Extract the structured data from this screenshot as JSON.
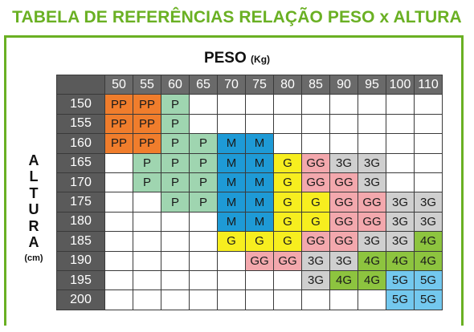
{
  "title": "TABELA DE REFERÊNCIAS RELAÇÃO PESO x ALTURA",
  "peso": {
    "label": "PESO",
    "unit": "(Kg)"
  },
  "altura": {
    "letters": [
      "A",
      "L",
      "T",
      "U",
      "R",
      "A"
    ],
    "unit": "(cm)"
  },
  "colors": {
    "PP": "#f07d2c",
    "P": "#9fd5b0",
    "M": "#1e9ad6",
    "G": "#f7ee1f",
    "GG": "#f3a8ad",
    "3G": "#cfcfcf",
    "4G": "#8dc43f",
    "5G": "#73c8ee",
    "frame": "#6ab023",
    "header": "#5a5a5a"
  },
  "table": {
    "weights": [
      "50",
      "55",
      "60",
      "65",
      "70",
      "75",
      "80",
      "85",
      "90",
      "95",
      "100",
      "110"
    ],
    "rows": [
      {
        "height": "150",
        "sizes": [
          "PP",
          "PP",
          "P",
          "",
          "",
          "",
          "",
          "",
          "",
          "",
          "",
          ""
        ]
      },
      {
        "height": "155",
        "sizes": [
          "PP",
          "PP",
          "P",
          "",
          "",
          "",
          "",
          "",
          "",
          "",
          "",
          ""
        ]
      },
      {
        "height": "160",
        "sizes": [
          "PP",
          "PP",
          "P",
          "P",
          "M",
          "M",
          "",
          "",
          "",
          "",
          "",
          ""
        ]
      },
      {
        "height": "165",
        "sizes": [
          "",
          "P",
          "P",
          "P",
          "M",
          "M",
          "G",
          "GG",
          "3G",
          "3G",
          "",
          ""
        ]
      },
      {
        "height": "170",
        "sizes": [
          "",
          "P",
          "P",
          "P",
          "M",
          "M",
          "G",
          "GG",
          "GG",
          "3G",
          "",
          ""
        ]
      },
      {
        "height": "175",
        "sizes": [
          "",
          "",
          "P",
          "P",
          "M",
          "M",
          "G",
          "G",
          "GG",
          "GG",
          "3G",
          "3G"
        ]
      },
      {
        "height": "180",
        "sizes": [
          "",
          "",
          "",
          "",
          "M",
          "M",
          "G",
          "G",
          "GG",
          "GG",
          "3G",
          "3G"
        ]
      },
      {
        "height": "185",
        "sizes": [
          "",
          "",
          "",
          "",
          "G",
          "G",
          "G",
          "GG",
          "GG",
          "3G",
          "3G",
          "4G"
        ]
      },
      {
        "height": "190",
        "sizes": [
          "",
          "",
          "",
          "",
          "",
          "GG",
          "GG",
          "3G",
          "3G",
          "4G",
          "4G",
          "4G"
        ]
      },
      {
        "height": "195",
        "sizes": [
          "",
          "",
          "",
          "",
          "",
          "",
          "",
          "3G",
          "4G",
          "4G",
          "5G",
          "5G"
        ]
      },
      {
        "height": "200",
        "sizes": [
          "",
          "",
          "",
          "",
          "",
          "",
          "",
          "",
          "",
          "",
          "5G",
          "5G"
        ]
      }
    ]
  }
}
